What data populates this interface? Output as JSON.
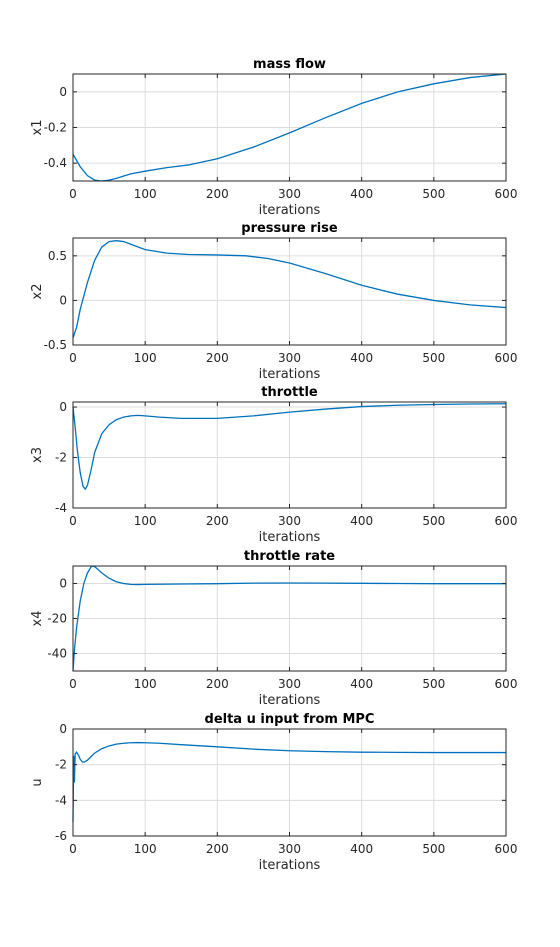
{
  "chart_data": [
    {
      "type": "line",
      "title": "mass flow",
      "xlabel": "iterations",
      "ylabel": "x1",
      "xlim": [
        0,
        600
      ],
      "ylim": [
        -0.5,
        0.1
      ],
      "xticks": [
        0,
        100,
        200,
        300,
        400,
        500,
        600
      ],
      "yticks": [
        -0.4,
        -0.2,
        0
      ],
      "xtick_labels": [
        "0",
        "100",
        "200",
        "300",
        "400",
        "500",
        "600"
      ],
      "ytick_labels": [
        "-0.4",
        "-0.2",
        "0"
      ],
      "grid": true,
      "series": [
        {
          "color": "#0072bd",
          "x": [
            0,
            10,
            20,
            30,
            40,
            50,
            60,
            80,
            100,
            130,
            160,
            200,
            250,
            300,
            350,
            400,
            450,
            500,
            550,
            600
          ],
          "y": [
            -0.35,
            -0.42,
            -0.47,
            -0.495,
            -0.5,
            -0.495,
            -0.485,
            -0.46,
            -0.445,
            -0.425,
            -0.41,
            -0.375,
            -0.31,
            -0.23,
            -0.145,
            -0.065,
            0.0,
            0.045,
            0.08,
            0.1
          ]
        }
      ]
    },
    {
      "type": "line",
      "title": "pressure rise",
      "xlabel": "iterations",
      "ylabel": "x2",
      "xlim": [
        0,
        600
      ],
      "ylim": [
        -0.5,
        0.7
      ],
      "xticks": [
        0,
        100,
        200,
        300,
        400,
        500,
        600
      ],
      "yticks": [
        -0.5,
        0,
        0.5
      ],
      "xtick_labels": [
        "0",
        "100",
        "200",
        "300",
        "400",
        "500",
        "600"
      ],
      "ytick_labels": [
        "-0.5",
        "0",
        "0.5"
      ],
      "grid": true,
      "series": [
        {
          "color": "#0072bd",
          "x": [
            0,
            5,
            10,
            20,
            30,
            40,
            50,
            60,
            70,
            80,
            100,
            130,
            160,
            200,
            240,
            270,
            300,
            350,
            400,
            450,
            500,
            550,
            600
          ],
          "y": [
            -0.42,
            -0.3,
            -0.1,
            0.2,
            0.45,
            0.6,
            0.66,
            0.67,
            0.66,
            0.63,
            0.57,
            0.53,
            0.515,
            0.51,
            0.5,
            0.47,
            0.42,
            0.3,
            0.17,
            0.07,
            0.0,
            -0.05,
            -0.08
          ]
        }
      ]
    },
    {
      "type": "line",
      "title": "throttle",
      "xlabel": "iterations",
      "ylabel": "x3",
      "xlim": [
        0,
        600
      ],
      "ylim": [
        -4,
        0.2
      ],
      "xticks": [
        0,
        100,
        200,
        300,
        400,
        500,
        600
      ],
      "yticks": [
        -4,
        -2,
        0
      ],
      "xtick_labels": [
        "0",
        "100",
        "200",
        "300",
        "400",
        "500",
        "600"
      ],
      "ytick_labels": [
        "-4",
        "-2",
        "0"
      ],
      "grid": true,
      "series": [
        {
          "color": "#0072bd",
          "x": [
            0,
            3,
            6,
            10,
            14,
            17,
            20,
            25,
            30,
            40,
            50,
            60,
            70,
            80,
            90,
            100,
            120,
            150,
            200,
            250,
            300,
            350,
            400,
            450,
            500,
            550,
            600
          ],
          "y": [
            0,
            -0.8,
            -1.7,
            -2.6,
            -3.15,
            -3.25,
            -3.1,
            -2.5,
            -1.8,
            -1.05,
            -0.7,
            -0.5,
            -0.4,
            -0.35,
            -0.33,
            -0.35,
            -0.4,
            -0.45,
            -0.45,
            -0.35,
            -0.2,
            -0.08,
            0.02,
            0.07,
            0.1,
            0.12,
            0.13
          ]
        }
      ]
    },
    {
      "type": "line",
      "title": "throttle rate",
      "xlabel": "iterations",
      "ylabel": "x4",
      "xlim": [
        0,
        600
      ],
      "ylim": [
        -50,
        10
      ],
      "xticks": [
        0,
        100,
        200,
        300,
        400,
        500,
        600
      ],
      "yticks": [
        -40,
        -20,
        0
      ],
      "xtick_labels": [
        "0",
        "100",
        "200",
        "300",
        "400",
        "500",
        "600"
      ],
      "ytick_labels": [
        "-40",
        "-20",
        "0"
      ],
      "grid": true,
      "series": [
        {
          "color": "#0072bd",
          "x": [
            0,
            2,
            5,
            10,
            15,
            20,
            25,
            28,
            32,
            40,
            50,
            60,
            70,
            80,
            90,
            100,
            150,
            200,
            250,
            300,
            350,
            400,
            450,
            500,
            550,
            600
          ],
          "y": [
            -50,
            -38,
            -25,
            -10,
            0,
            6,
            9.5,
            10,
            9,
            6,
            3,
            1,
            0,
            -0.5,
            -0.6,
            -0.5,
            -0.3,
            -0.1,
            0.2,
            0.3,
            0.2,
            0.1,
            0,
            -0.1,
            -0.1,
            -0.1
          ]
        }
      ]
    },
    {
      "type": "line",
      "title": "delta u input from MPC",
      "xlabel": "iterations",
      "ylabel": "u",
      "xlim": [
        0,
        600
      ],
      "ylim": [
        -6,
        0
      ],
      "xticks": [
        0,
        100,
        200,
        300,
        400,
        500,
        600
      ],
      "yticks": [
        -6,
        -4,
        -2,
        0
      ],
      "xtick_labels": [
        "0",
        "100",
        "200",
        "300",
        "400",
        "500",
        "600"
      ],
      "ytick_labels": [
        "-6",
        "-4",
        "-2",
        "0"
      ],
      "grid": true,
      "series": [
        {
          "color": "#0072bd",
          "x": [
            0,
            1,
            2,
            3,
            5,
            8,
            10,
            13,
            16,
            20,
            25,
            30,
            40,
            50,
            60,
            70,
            80,
            90,
            100,
            120,
            150,
            200,
            250,
            300,
            350,
            400,
            450,
            500,
            550,
            600
          ],
          "y": [
            -5.2,
            -1.5,
            -3.0,
            -1.4,
            -1.3,
            -1.5,
            -1.7,
            -1.85,
            -1.85,
            -1.75,
            -1.55,
            -1.35,
            -1.1,
            -0.95,
            -0.85,
            -0.8,
            -0.77,
            -0.76,
            -0.77,
            -0.8,
            -0.88,
            -1.0,
            -1.13,
            -1.22,
            -1.27,
            -1.3,
            -1.31,
            -1.32,
            -1.32,
            -1.32
          ]
        }
      ]
    }
  ]
}
